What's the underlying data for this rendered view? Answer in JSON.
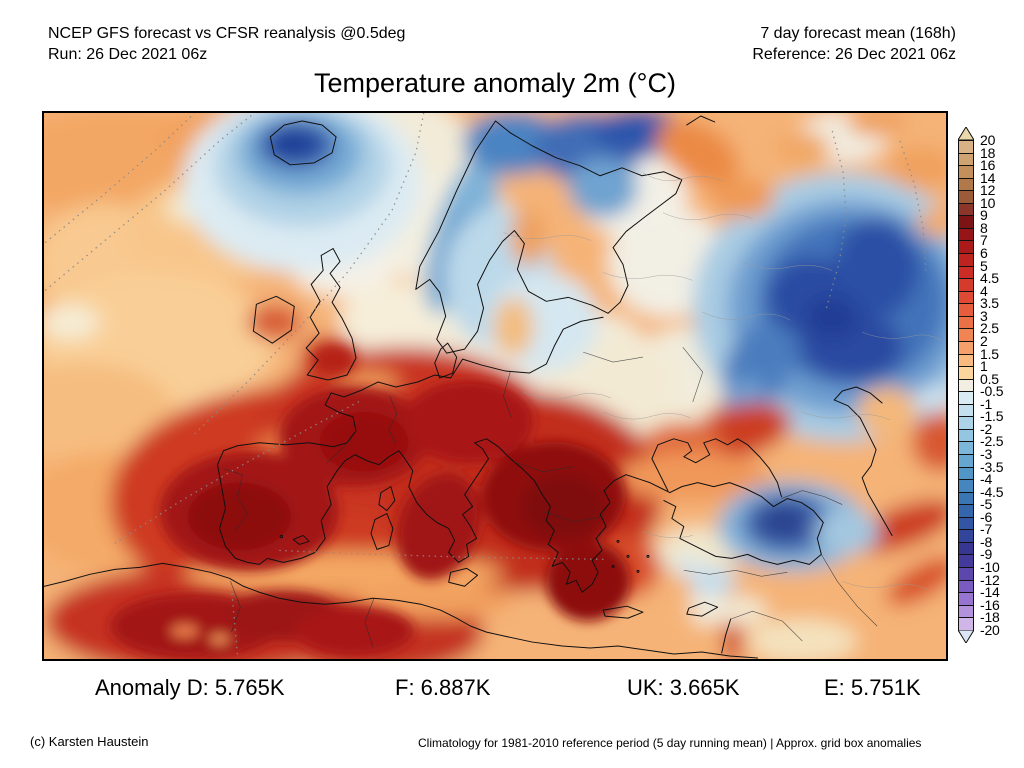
{
  "header": {
    "left_line1": "NCEP GFS forecast vs CFSR reanalysis @0.5deg",
    "left_line2": "Run: 26 Dec 2021 06z",
    "right_line1": "7 day forecast mean (168h)",
    "right_line2": "Reference: 26 Dec 2021 06z"
  },
  "title": "Temperature anomaly 2m (°C)",
  "stats": {
    "d": "Anomaly D: 5.765K",
    "f": "F: 6.887K",
    "uk": "UK: 3.665K",
    "e": "E: 5.751K"
  },
  "footer": {
    "credit": "(c) Karsten Haustein",
    "note": "Climatology for 1981-2010 reference period (5 day running mean) | Approx. grid box anomalies"
  },
  "colorbar": {
    "unit": "°C",
    "boundary_labels": [
      "20",
      "18",
      "16",
      "14",
      "12",
      "10",
      "9",
      "8",
      "7",
      "6",
      "5",
      "4.5",
      "4",
      "3.5",
      "3",
      "2.5",
      "2",
      "1.5",
      "1",
      "0.5",
      "-0.5",
      "-1",
      "-1.5",
      "-2",
      "-2.5",
      "-3",
      "-3.5",
      "-4",
      "-4.5",
      "-5",
      "-6",
      "-7",
      "-8",
      "-9",
      "-10",
      "-12",
      "-14",
      "-16",
      "-18",
      "-20"
    ],
    "segment_colors": [
      "#d8b284",
      "#cfa271",
      "#c3905c",
      "#b1794a",
      "#9d5a39",
      "#8c352a",
      "#7c1315",
      "#961518",
      "#ab1a1a",
      "#bd231f",
      "#cb2d26",
      "#d53a2c",
      "#de4a33",
      "#e55d3c",
      "#eb7046",
      "#f18453",
      "#f5a06a",
      "#f9ba80",
      "#fbd49e",
      "#f2efe2",
      "#d9ebf3",
      "#c4e0ee",
      "#add3e8",
      "#94c6e1",
      "#7cb7d9",
      "#65a7d0",
      "#5296c7",
      "#4486bd",
      "#3b76b4",
      "#3566ac",
      "#3256a4",
      "#32459b",
      "#373792",
      "#443a9c",
      "#5c48ad",
      "#7a5cc0",
      "#9674d0",
      "#b292dd",
      "#cfb5e8"
    ],
    "arrow_top_color": "#ead9ab",
    "arrow_bottom_color": "#dde6f6",
    "border_color": "#111111"
  }
}
